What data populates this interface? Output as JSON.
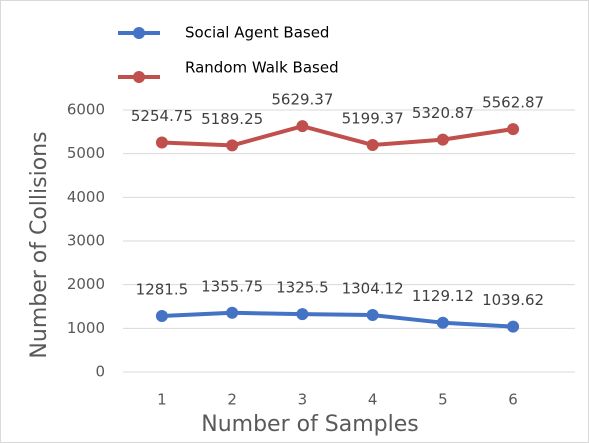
{
  "chart_data": {
    "type": "line",
    "xlabel": "Number of Samples",
    "ylabel": "Number of Collisions",
    "categories": [
      "1",
      "2",
      "3",
      "4",
      "5",
      "6"
    ],
    "series": [
      {
        "name": "Social Agent Based",
        "color": "#4472c4",
        "values": [
          1281.5,
          1355.75,
          1325.5,
          1304.12,
          1129.12,
          1039.62
        ]
      },
      {
        "name": "Random Walk Based",
        "color": "#c0504d",
        "values": [
          5254.75,
          5189.25,
          5629.37,
          5199.37,
          5320.87,
          5562.87
        ]
      }
    ],
    "ylim": [
      0,
      6000
    ],
    "yticks": [
      0,
      1000,
      2000,
      3000,
      4000,
      5000,
      6000
    ],
    "grid": true,
    "legend": "top-left"
  }
}
